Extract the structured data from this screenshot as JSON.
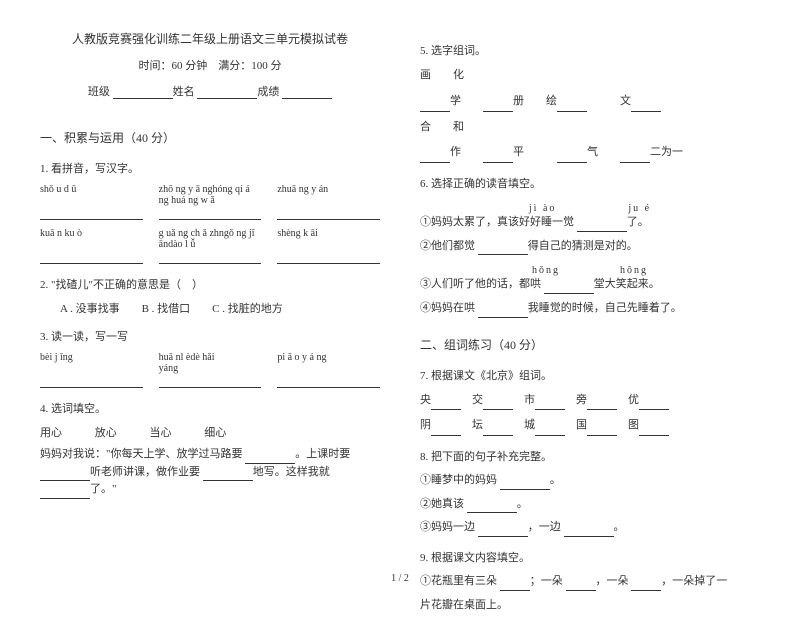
{
  "header": {
    "title": "人教版竞赛强化训练二年级上册语文三单元模拟试卷",
    "time_label": "时间：",
    "time_value": "60 分钟",
    "score_label": "满分：",
    "score_value": "100 分",
    "class_label": "班级",
    "name_label": "姓名",
    "grade_label": "成绩"
  },
  "s1": {
    "heading": "一、积累与运用（40 分）",
    "q1": {
      "title": "1. 看拼音，写汉字。",
      "p1a": "shǒ u d ū",
      "p1b": "zhō ng y ā nghóng qí á ng huá ng w ǎ",
      "p1c": "zhuā ng y án",
      "p2a": "kuā n ku ò",
      "p2b": "g uǎ ng ch ǎ zhngǒ ng jī āndào l ǚ",
      "p2c": "shèng k āi"
    },
    "q2": {
      "title": "2. \"找碴儿\"不正确的意思是（　）",
      "opts": "A . 没事找事　　B . 找借口　　C . 找脏的地方"
    },
    "q3": {
      "title": "3. 读一读，写一写",
      "p1": "bèi j ǐng",
      "p2": "huā nl èdè hǎi",
      "p3": "pi ā o y á ng",
      "p4": "yáng"
    },
    "q4": {
      "title": "4. 选词填空。",
      "w1": "用心",
      "w2": "放心",
      "w3": "当心",
      "w4": "细心",
      "text_a": "妈妈对我说：\"你每天上学、放学过马路要",
      "text_b": "。上课时要",
      "text_c": "听老师讲课，做作业要",
      "text_d": "地写。这样我就",
      "text_e": "了。\""
    },
    "q5": {
      "title": "5. 选字组词。",
      "l1a": "画　　化",
      "l1b_a": "学",
      "l1b_b": "册",
      "l1b_c": "绘",
      "l1b_d": "文",
      "l2a": "合　　和",
      "l2b_a": "作",
      "l2b_b": "平",
      "l2b_c": "气",
      "l2b_d": "二为一"
    },
    "q6": {
      "title": "6. 选择正确的读音填空。",
      "p1": "jì ào　　　　　　ju é",
      "l1": "①妈妈太累了，真该好好睡一觉",
      "l1b": "了。",
      "l2": "②他们都觉",
      "l2b": "得自己的猜测是对的。",
      "p2": "hǒng　　　　　hōng",
      "l3": "③人们听了他的话，都哄",
      "l3b": "堂大笑起来。",
      "l4": "④妈妈在哄",
      "l4b": "我睡觉的时候，自己先睡着了。"
    }
  },
  "s2": {
    "heading": "二、组词练习（40 分）",
    "q7": {
      "title": "7. 根据课文《北京》组词。",
      "w": [
        "央",
        "交",
        "市",
        "旁",
        "优",
        "阴",
        "坛",
        "城",
        "国",
        "图"
      ]
    },
    "q8": {
      "title": "8. 把下面的句子补充完整。",
      "l1": "①睡梦中的妈妈",
      "l1b": "。",
      "l2": "②她真该",
      "l2b": "。",
      "l3": "③妈妈一边",
      "l3b": "，一边",
      "l3c": "。"
    },
    "q9": {
      "title": "9. 根据课文内容填空。",
      "l1a": "①花瓶里有三朵",
      "l1b": "；一朵",
      "l1c": "，一朵",
      "l1d": "，一朵掉了一",
      "l2": "片花瓣在桌面上。"
    }
  },
  "footer": {
    "page": "1 / 2"
  }
}
